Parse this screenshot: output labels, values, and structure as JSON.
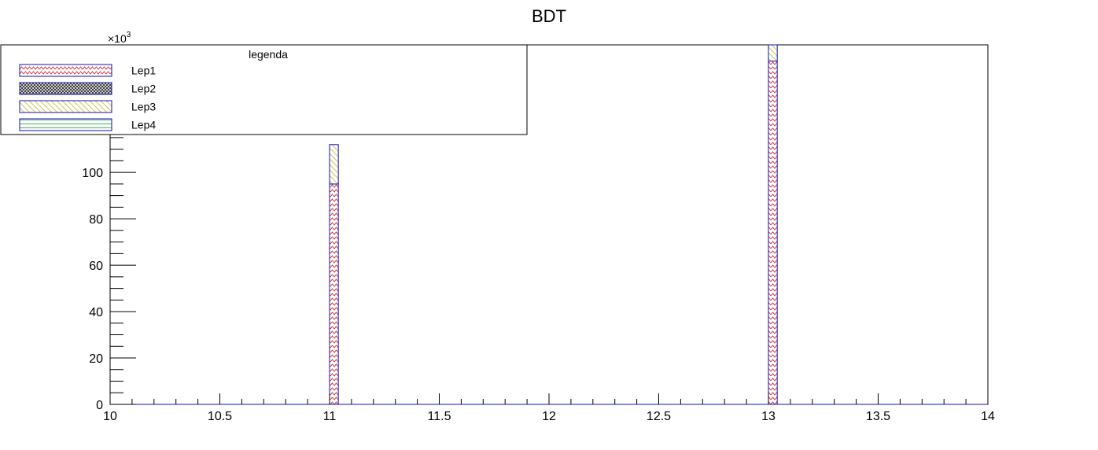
{
  "chart_data": {
    "type": "bar",
    "stacked": true,
    "title": "BDT",
    "xlabel": "",
    "ylabel": "",
    "xlim": [
      10,
      14
    ],
    "ylim": [
      0,
      155
    ],
    "y_multiplier_label": "×10",
    "y_multiplier_exponent": "3",
    "x_ticks": [
      "10",
      "10.5",
      "11",
      "11.5",
      "12",
      "12.5",
      "13",
      "13.5",
      "14"
    ],
    "y_ticks": [
      "0",
      "20",
      "40",
      "60",
      "80",
      "100"
    ],
    "bin_width": 0.04,
    "bins": [
      11,
      13
    ],
    "series": [
      {
        "name": "Lep1",
        "values": [
          95,
          148
        ],
        "color": "#d03030",
        "pattern": "zigzag"
      },
      {
        "name": "Lep2",
        "values": [
          0,
          0
        ],
        "color": "#333333",
        "pattern": "crosshatch"
      },
      {
        "name": "Lep3",
        "values": [
          17,
          7
        ],
        "color": "#c9c23a",
        "pattern": "diagonal"
      },
      {
        "name": "Lep4",
        "values": [
          0,
          0
        ],
        "color": "#3aa64a",
        "pattern": "horizontal"
      }
    ],
    "grid": false,
    "legend": {
      "title": "legenda",
      "position": "top-left"
    }
  }
}
